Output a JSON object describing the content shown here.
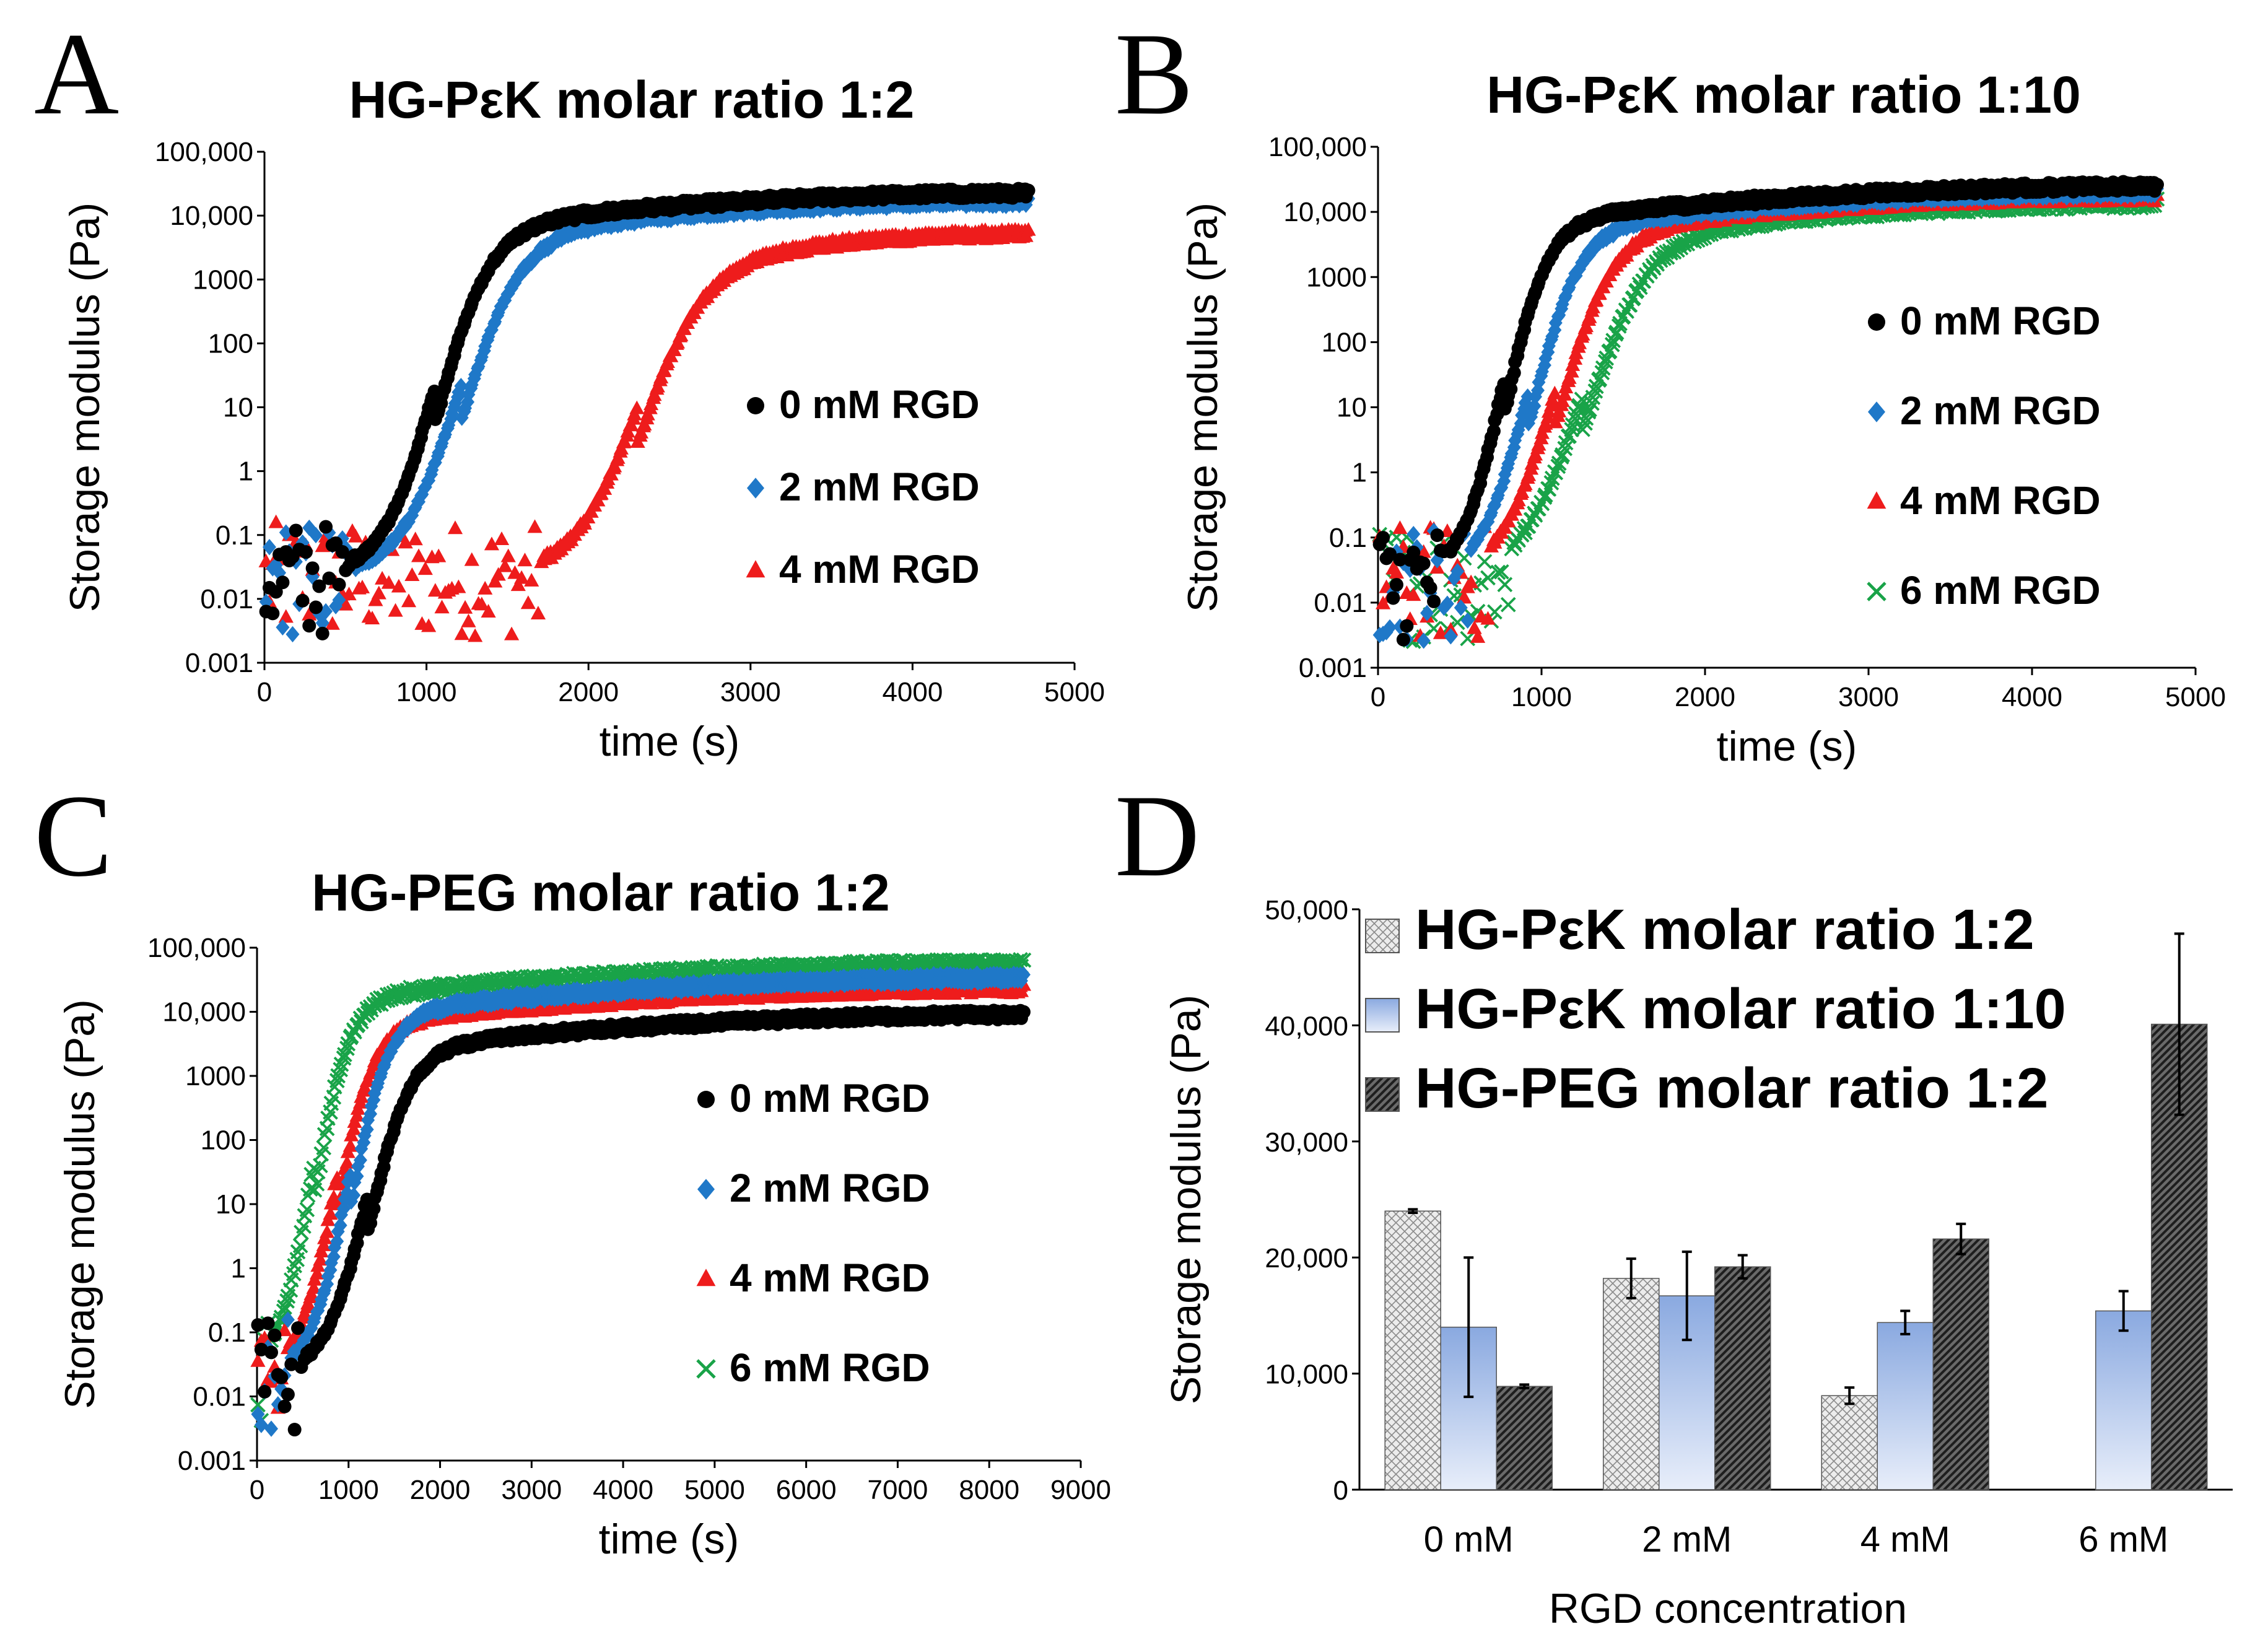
{
  "panel_letters": [
    "A",
    "B",
    "C",
    "D"
  ],
  "colors": {
    "0 mM RGD": "#000000",
    "2 mM RGD": "#1f78c8",
    "4 mM RGD": "#ee1c1c",
    "6 mM RGD": "#19a348",
    "bar_fill_1": "#ececec",
    "bar_fill_2": "#a9c0e8",
    "bar_fill_3": "#3a3a3a"
  },
  "chart_data": [
    {
      "id": "A",
      "type": "scatter",
      "title": "HG-PεK molar ratio 1:2",
      "xlabel": "time (s)",
      "ylabel": "Storage modulus (Pa)",
      "xlim": [
        0,
        5000
      ],
      "ylim": [
        0.001,
        100000
      ],
      "yscale": "log",
      "xticks": [
        "0",
        "1000",
        "2000",
        "3000",
        "4000",
        "5000"
      ],
      "yticks": [
        "0.001",
        "0.01",
        "0.1",
        "1",
        "10",
        "100",
        "1000",
        "10,000",
        "100,000"
      ],
      "series": [
        {
          "name": "0 mM RGD",
          "marker": "●",
          "t_onset": 520,
          "rise_center": 1050,
          "rise_width": 165,
          "plateau": 20000,
          "x_end": 4700
        },
        {
          "name": "2 mM RGD",
          "marker": "◆",
          "t_onset": 560,
          "rise_center": 1200,
          "rise_width": 185,
          "plateau": 15000,
          "x_end": 4700
        },
        {
          "name": "4 mM RGD",
          "marker": "▲",
          "t_onset": 1700,
          "rise_center": 2300,
          "rise_width": 200,
          "plateau": 4500,
          "x_end": 4700
        }
      ]
    },
    {
      "id": "B",
      "type": "scatter",
      "title": "HG-PεK molar ratio 1:10",
      "xlabel": "time (s)",
      "ylabel": "Storage modulus (Pa)",
      "xlim": [
        0,
        5000
      ],
      "ylim": [
        0.001,
        100000
      ],
      "yscale": "log",
      "xticks": [
        "0",
        "1000",
        "2000",
        "3000",
        "4000",
        "5000"
      ],
      "yticks": [
        "0.001",
        "0.01",
        "0.1",
        "1",
        "10",
        "100",
        "1000",
        "10,000",
        "100,000"
      ],
      "series": [
        {
          "name": "0 mM RGD",
          "marker": "●",
          "t_onset": 430,
          "rise_center": 760,
          "rise_width": 130,
          "plateau": 22000,
          "x_end": 4750
        },
        {
          "name": "2 mM RGD",
          "marker": "◆",
          "t_onset": 560,
          "rise_center": 920,
          "rise_width": 150,
          "plateau": 18000,
          "x_end": 4750
        },
        {
          "name": "4 mM RGD",
          "marker": "▲",
          "t_onset": 680,
          "rise_center": 1080,
          "rise_width": 170,
          "plateau": 15000,
          "x_end": 4750
        },
        {
          "name": "6 mM RGD",
          "marker": "×",
          "t_onset": 800,
          "rise_center": 1250,
          "rise_width": 190,
          "plateau": 12000,
          "x_end": 4750
        }
      ]
    },
    {
      "id": "C",
      "type": "scatter",
      "title": "HG-PEG molar ratio 1:2",
      "xlabel": "time (s)",
      "ylabel": "Storage modulus (Pa)",
      "xlim": [
        0,
        9000
      ],
      "ylim": [
        0.001,
        100000
      ],
      "yscale": "log",
      "xticks": [
        "0",
        "1000",
        "2000",
        "3000",
        "4000",
        "5000",
        "6000",
        "7000",
        "8000",
        "9000"
      ],
      "yticks": [
        "0.001",
        "0.01",
        "0.1",
        "1",
        "10",
        "100",
        "1000",
        "10,000",
        "100,000"
      ],
      "series": [
        {
          "name": "0 mM RGD",
          "marker": "●",
          "t_onset": 500,
          "rise_center": 1200,
          "rise_width": 230,
          "plateau": 8000,
          "x_end": 8350
        },
        {
          "name": "2 mM RGD",
          "marker": "◆",
          "t_onset": 350,
          "rise_center": 1000,
          "rise_width": 210,
          "plateau": 30000,
          "x_end": 8350
        },
        {
          "name": "4 mM RGD",
          "marker": "▲",
          "t_onset": 320,
          "rise_center": 850,
          "rise_width": 200,
          "plateau": 20000,
          "x_end": 8350
        },
        {
          "name": "6 mM RGD",
          "marker": "×",
          "t_onset": 150,
          "rise_center": 600,
          "rise_width": 190,
          "plateau": 50000,
          "x_end": 8350
        }
      ]
    },
    {
      "id": "D",
      "type": "bar",
      "title": "",
      "xlabel": "RGD concentration",
      "ylabel": "Storage modulus (Pa)",
      "ylim": [
        0,
        50000
      ],
      "yticks": [
        "0",
        "10,000",
        "20,000",
        "30,000",
        "40,000",
        "50,000"
      ],
      "categories": [
        "0 mM",
        "2 mM",
        "4 mM",
        "6 mM"
      ],
      "series": [
        {
          "name": "HG-PεK molar ratio 1:2",
          "values": [
            24000,
            18200,
            8100,
            null
          ],
          "errors": [
            150,
            1700,
            700,
            null
          ]
        },
        {
          "name": "HG-PεK molar ratio 1:10",
          "values": [
            14000,
            16700,
            14400,
            15400
          ],
          "errors": [
            6000,
            3800,
            1000,
            1700
          ]
        },
        {
          "name": "HG-PEG molar ratio 1:2",
          "values": [
            8900,
            19200,
            21600,
            40100
          ],
          "errors": [
            150,
            1000,
            1300,
            7800
          ]
        }
      ]
    }
  ]
}
